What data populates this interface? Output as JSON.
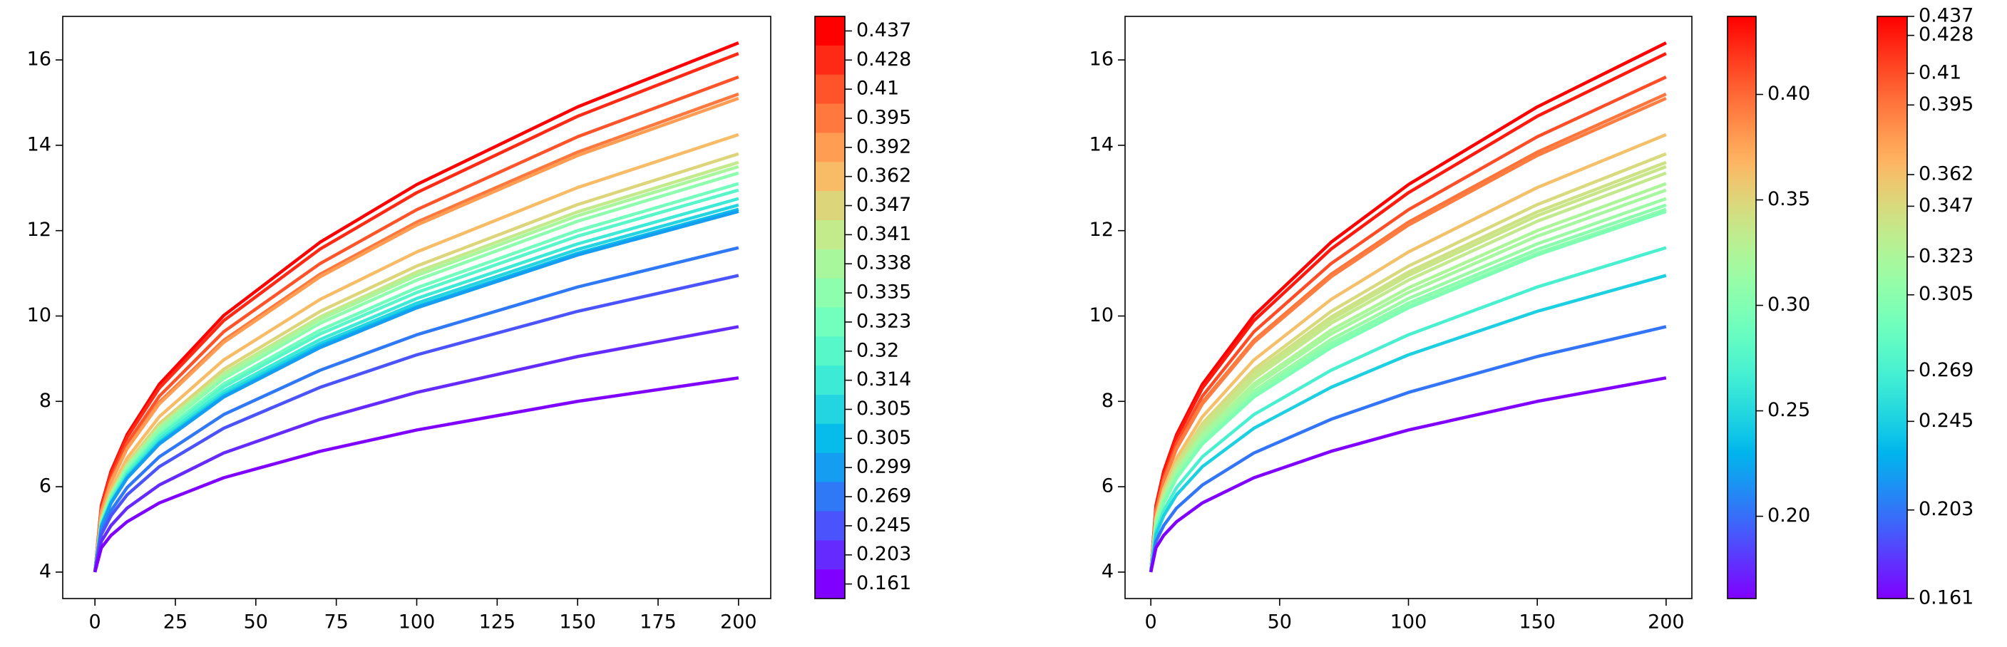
{
  "chart_data": [
    {
      "type": "line",
      "colormap": "rainbow",
      "color_scale": "discrete",
      "x": [
        0,
        2,
        5,
        10,
        20,
        40,
        70,
        100,
        150,
        200
      ],
      "xlim": [
        -10,
        210
      ],
      "ylim": [
        3.38,
        17.02
      ],
      "xticks": [
        0,
        25,
        50,
        75,
        100,
        125,
        150,
        175,
        200
      ],
      "yticks": [
        4,
        6,
        8,
        10,
        12,
        14,
        16
      ],
      "color_values": [
        0.437,
        0.428,
        0.41,
        0.395,
        0.392,
        0.362,
        0.347,
        0.341,
        0.338,
        0.335,
        0.323,
        0.32,
        0.314,
        0.305,
        0.305,
        0.299,
        0.269,
        0.245,
        0.203,
        0.161
      ],
      "series": [
        {
          "values": [
            4,
            5.56,
            6.36,
            7.22,
            8.4,
            10.01,
            11.73,
            13.08,
            14.9,
            16.4
          ]
        },
        {
          "values": [
            4,
            5.53,
            6.31,
            7.16,
            8.31,
            9.89,
            11.57,
            12.89,
            14.68,
            16.15
          ]
        },
        {
          "values": [
            4,
            5.46,
            6.2,
            7.02,
            8.12,
            9.63,
            11.23,
            12.49,
            14.2,
            15.6
          ]
        },
        {
          "values": [
            4,
            5.41,
            6.13,
            6.91,
            7.98,
            9.43,
            10.98,
            12.2,
            13.84,
            15.2
          ]
        },
        {
          "values": [
            4,
            5.4,
            6.11,
            6.89,
            7.94,
            9.38,
            10.92,
            12.13,
            13.76,
            15.1
          ]
        },
        {
          "values": [
            4,
            5.29,
            5.95,
            6.67,
            7.64,
            8.97,
            10.39,
            11.5,
            13.01,
            14.25
          ]
        },
        {
          "values": [
            4,
            5.23,
            5.86,
            6.55,
            7.48,
            8.75,
            10.11,
            11.17,
            12.61,
            13.8
          ]
        },
        {
          "values": [
            4,
            5.21,
            5.82,
            6.5,
            7.41,
            8.66,
            9.98,
            11.03,
            12.44,
            13.6
          ]
        },
        {
          "values": [
            4,
            5.2,
            5.81,
            6.47,
            7.37,
            8.61,
            9.92,
            10.95,
            12.35,
            13.5
          ]
        },
        {
          "values": [
            4,
            5.18,
            5.78,
            6.43,
            7.32,
            8.53,
            9.83,
            10.84,
            12.22,
            13.35
          ]
        },
        {
          "values": [
            4,
            5.15,
            5.73,
            6.37,
            7.23,
            8.41,
            9.67,
            10.66,
            12.0,
            13.1
          ]
        },
        {
          "values": [
            4,
            5.13,
            5.7,
            6.33,
            7.18,
            8.34,
            9.58,
            10.55,
            11.87,
            12.95
          ]
        },
        {
          "values": [
            4,
            5.1,
            5.66,
            6.28,
            7.11,
            8.24,
            9.45,
            10.41,
            11.69,
            12.75
          ]
        },
        {
          "values": [
            4,
            5.08,
            5.63,
            6.24,
            7.05,
            8.17,
            9.36,
            10.3,
            11.56,
            12.6
          ]
        },
        {
          "values": [
            4,
            5.07,
            5.62,
            6.21,
            7.02,
            8.12,
            9.3,
            10.22,
            11.47,
            12.5
          ]
        },
        {
          "values": [
            4,
            5.06,
            5.61,
            6.2,
            7.0,
            8.1,
            9.26,
            10.19,
            11.43,
            12.45
          ]
        },
        {
          "values": [
            4,
            4.96,
            5.44,
            5.98,
            6.7,
            7.69,
            8.73,
            9.56,
            10.68,
            11.6
          ]
        },
        {
          "values": [
            4,
            4.88,
            5.32,
            5.81,
            6.47,
            7.37,
            8.33,
            9.09,
            10.11,
            10.95
          ]
        },
        {
          "values": [
            4,
            4.72,
            5.09,
            5.5,
            6.04,
            6.79,
            7.58,
            8.21,
            9.05,
            9.75
          ]
        },
        {
          "values": [
            4,
            4.57,
            4.86,
            5.18,
            5.62,
            6.21,
            6.83,
            7.33,
            8.0,
            8.55
          ]
        }
      ]
    },
    {
      "type": "line",
      "colormap": "rainbow",
      "color_scale": "linear",
      "x": [
        0,
        2,
        5,
        10,
        20,
        40,
        70,
        100,
        150,
        200
      ],
      "xlim": [
        -10,
        210
      ],
      "ylim": [
        3.38,
        17.02
      ],
      "xticks": [
        0,
        50,
        100,
        150,
        200
      ],
      "yticks": [
        4,
        6,
        8,
        10,
        12,
        14,
        16
      ],
      "clim": [
        0.161,
        0.437
      ],
      "color_values": [
        0.437,
        0.428,
        0.41,
        0.395,
        0.392,
        0.362,
        0.347,
        0.341,
        0.338,
        0.335,
        0.323,
        0.32,
        0.314,
        0.305,
        0.305,
        0.299,
        0.269,
        0.245,
        0.203,
        0.161
      ],
      "colorbars": [
        {
          "ticks": [
            {
              "value": 0.2,
              "label": "0.20"
            },
            0.25,
            {
              "value": 0.3,
              "label": "0.30"
            },
            0.35,
            {
              "value": 0.4,
              "label": "0.40"
            }
          ]
        },
        {
          "ticks": [
            0.437,
            0.428,
            0.41,
            0.395,
            0.362,
            0.347,
            0.323,
            0.305,
            0.269,
            0.245,
            0.203,
            0.161
          ]
        }
      ],
      "series": [
        {
          "values": [
            4,
            5.56,
            6.36,
            7.22,
            8.4,
            10.01,
            11.73,
            13.08,
            14.9,
            16.4
          ]
        },
        {
          "values": [
            4,
            5.53,
            6.31,
            7.16,
            8.31,
            9.89,
            11.57,
            12.89,
            14.68,
            16.15
          ]
        },
        {
          "values": [
            4,
            5.46,
            6.2,
            7.02,
            8.12,
            9.63,
            11.23,
            12.49,
            14.2,
            15.6
          ]
        },
        {
          "values": [
            4,
            5.41,
            6.13,
            6.91,
            7.98,
            9.43,
            10.98,
            12.2,
            13.84,
            15.2
          ]
        },
        {
          "values": [
            4,
            5.4,
            6.11,
            6.89,
            7.94,
            9.38,
            10.92,
            12.13,
            13.76,
            15.1
          ]
        },
        {
          "values": [
            4,
            5.29,
            5.95,
            6.67,
            7.64,
            8.97,
            10.39,
            11.5,
            13.01,
            14.25
          ]
        },
        {
          "values": [
            4,
            5.23,
            5.86,
            6.55,
            7.48,
            8.75,
            10.11,
            11.17,
            12.61,
            13.8
          ]
        },
        {
          "values": [
            4,
            5.21,
            5.82,
            6.5,
            7.41,
            8.66,
            9.98,
            11.03,
            12.44,
            13.6
          ]
        },
        {
          "values": [
            4,
            5.2,
            5.81,
            6.47,
            7.37,
            8.61,
            9.92,
            10.95,
            12.35,
            13.5
          ]
        },
        {
          "values": [
            4,
            5.18,
            5.78,
            6.43,
            7.32,
            8.53,
            9.83,
            10.84,
            12.22,
            13.35
          ]
        },
        {
          "values": [
            4,
            5.15,
            5.73,
            6.37,
            7.23,
            8.41,
            9.67,
            10.66,
            12.0,
            13.1
          ]
        },
        {
          "values": [
            4,
            5.13,
            5.7,
            6.33,
            7.18,
            8.34,
            9.58,
            10.55,
            11.87,
            12.95
          ]
        },
        {
          "values": [
            4,
            5.1,
            5.66,
            6.28,
            7.11,
            8.24,
            9.45,
            10.41,
            11.69,
            12.75
          ]
        },
        {
          "values": [
            4,
            5.08,
            5.63,
            6.24,
            7.05,
            8.17,
            9.36,
            10.3,
            11.56,
            12.6
          ]
        },
        {
          "values": [
            4,
            5.07,
            5.62,
            6.21,
            7.02,
            8.12,
            9.3,
            10.22,
            11.47,
            12.5
          ]
        },
        {
          "values": [
            4,
            5.06,
            5.61,
            6.2,
            7.0,
            8.1,
            9.26,
            10.19,
            11.43,
            12.45
          ]
        },
        {
          "values": [
            4,
            4.96,
            5.44,
            5.98,
            6.7,
            7.69,
            8.73,
            9.56,
            10.68,
            11.6
          ]
        },
        {
          "values": [
            4,
            4.88,
            5.32,
            5.81,
            6.47,
            7.37,
            8.33,
            9.09,
            10.11,
            10.95
          ]
        },
        {
          "values": [
            4,
            4.72,
            5.09,
            5.5,
            6.04,
            6.79,
            7.58,
            8.21,
            9.05,
            9.75
          ]
        },
        {
          "values": [
            4,
            4.57,
            4.86,
            5.18,
            5.62,
            6.21,
            6.83,
            7.33,
            8.0,
            8.55
          ]
        }
      ]
    }
  ]
}
